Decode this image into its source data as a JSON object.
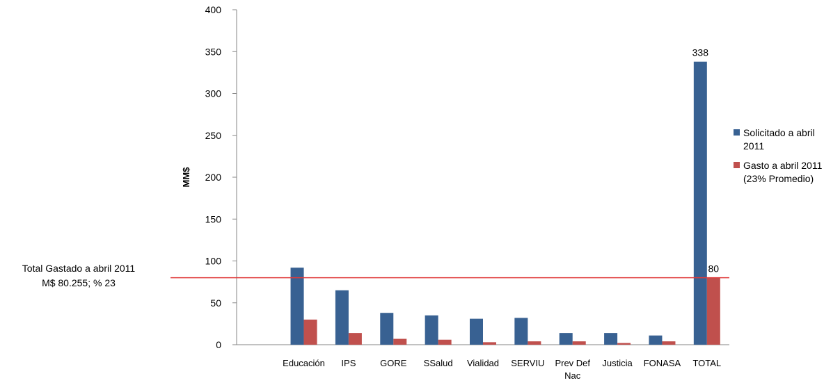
{
  "chart_data": {
    "type": "bar",
    "ylabel": "MM$",
    "ylim": [
      0,
      400
    ],
    "yticks": [
      0,
      50,
      100,
      150,
      200,
      250,
      300,
      350,
      400
    ],
    "categories": [
      "",
      [
        "Educación"
      ],
      [
        "IPS"
      ],
      [
        "GORE"
      ],
      [
        "SSalud"
      ],
      [
        "Vialidad"
      ],
      [
        "SERVIU"
      ],
      [
        "Prev Def",
        "Nac"
      ],
      [
        "Justicia"
      ],
      [
        "FONASA"
      ],
      [
        "TOTAL"
      ]
    ],
    "series": [
      {
        "name": "Solicitado a abril 2011",
        "color": "#386192",
        "values": [
          null,
          92,
          65,
          38,
          35,
          31,
          32,
          14,
          14,
          11,
          338
        ],
        "data_labels": {
          "10": "338"
        }
      },
      {
        "name": "Gasto a abril 2011 (23% Promedio)",
        "color": "#c0504d",
        "values": [
          null,
          30,
          14,
          7,
          6,
          3,
          4,
          4,
          2,
          4,
          80
        ],
        "data_labels": {
          "10": "80"
        }
      }
    ],
    "legend": {
      "position": "right",
      "entries": [
        [
          "Solicitado a abril",
          "2011"
        ],
        [
          "Gasto a abril 2011",
          "(23% Promedio)"
        ]
      ]
    },
    "reference_line": {
      "value": 80,
      "color": "#e03a3a",
      "annotation": [
        "Total Gastado a abril 2011",
        "M$ 80.255; % 23"
      ]
    }
  }
}
